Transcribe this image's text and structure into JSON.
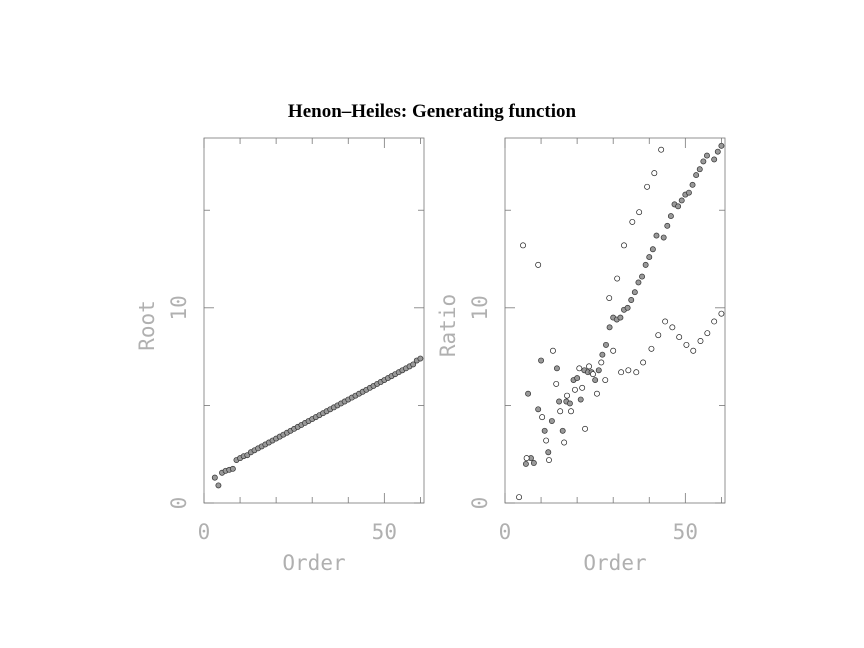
{
  "title": "Henon–Heiles: Generating function",
  "chart_data": [
    {
      "type": "scatter",
      "xlabel": "Order",
      "ylabel": "Root",
      "xlim": [
        0,
        61
      ],
      "ylim": [
        0,
        18.7
      ],
      "xticks": [
        0,
        50
      ],
      "yticks": [
        0,
        10
      ],
      "x_minor_ticks": [
        10,
        20,
        30,
        40,
        60
      ],
      "y_minor_ticks": [
        5,
        15
      ],
      "series": [
        {
          "color": "#999999",
          "filled": true,
          "x": [
            3,
            4,
            5,
            6,
            7,
            8,
            9,
            10,
            11,
            12,
            13,
            14,
            15,
            16,
            17,
            18,
            19,
            20,
            21,
            22,
            23,
            24,
            25,
            26,
            27,
            28,
            29,
            30,
            31,
            32,
            33,
            34,
            35,
            36,
            37,
            38,
            39,
            40,
            41,
            42,
            43,
            44,
            45,
            46,
            47,
            48,
            49,
            50,
            51,
            52,
            53,
            54,
            55,
            56,
            57,
            58,
            59,
            60
          ],
          "values": [
            1.3,
            0.9,
            1.55,
            1.65,
            1.7,
            1.75,
            2.2,
            2.3,
            2.4,
            2.45,
            2.6,
            2.7,
            2.8,
            2.9,
            3.0,
            3.1,
            3.2,
            3.3,
            3.4,
            3.5,
            3.6,
            3.7,
            3.8,
            3.9,
            4.0,
            4.1,
            4.2,
            4.3,
            4.4,
            4.5,
            4.6,
            4.7,
            4.8,
            4.9,
            5.0,
            5.1,
            5.2,
            5.3,
            5.4,
            5.5,
            5.6,
            5.7,
            5.8,
            5.9,
            6.0,
            6.1,
            6.2,
            6.3,
            6.4,
            6.5,
            6.6,
            6.7,
            6.8,
            6.9,
            7.0,
            7.1,
            7.3,
            7.4
          ]
        }
      ]
    },
    {
      "type": "scatter",
      "xlabel": "Order",
      "ylabel": "Ratio",
      "xlim": [
        0,
        61
      ],
      "ylim": [
        0,
        18.7
      ],
      "xticks": [
        0,
        50
      ],
      "yticks": [
        0,
        10
      ],
      "x_minor_ticks": [
        10,
        20,
        30,
        40,
        60
      ],
      "y_minor_ticks": [
        5,
        15
      ],
      "series": [
        {
          "color": "#999999",
          "filled": true,
          "x": [
            5.8,
            6.4,
            7.2,
            8,
            9.2,
            10,
            11,
            12,
            13,
            14.4,
            15,
            16,
            17,
            18,
            19,
            20,
            21,
            22,
            23,
            24,
            25,
            26,
            27,
            28,
            29,
            30,
            31,
            32,
            33,
            34,
            35,
            36,
            37,
            38,
            39,
            40,
            41,
            42,
            44,
            45,
            46,
            47,
            48,
            49,
            50,
            51,
            52,
            53,
            54,
            55,
            56,
            58,
            59,
            60
          ],
          "values": [
            2.0,
            5.6,
            2.3,
            2.05,
            4.8,
            7.3,
            3.7,
            2.6,
            4.2,
            6.9,
            5.2,
            3.7,
            5.2,
            5.1,
            6.3,
            6.4,
            5.3,
            6.8,
            6.7,
            6.7,
            6.3,
            6.8,
            7.6,
            8.1,
            9.0,
            9.5,
            9.4,
            9.5,
            9.9,
            10.0,
            10.4,
            10.8,
            11.3,
            11.6,
            12.2,
            12.6,
            13.0,
            13.7,
            13.6,
            14.2,
            14.7,
            15.3,
            15.2,
            15.5,
            15.8,
            15.9,
            16.3,
            16.8,
            17.1,
            17.5,
            17.8,
            17.6,
            18.0,
            18.3
          ]
        },
        {
          "color": "#ffffff",
          "filled": false,
          "x": [
            3.9,
            5,
            9.2,
            6,
            10.3,
            11.4,
            12.2,
            13.3,
            14.2,
            15.3,
            16.4,
            17.2,
            18.3,
            19.4,
            20.6,
            21.4,
            22.2,
            23.3,
            24.4,
            25.5,
            26.7,
            27.8,
            28.9,
            30,
            31.1,
            32.2,
            33,
            34.2,
            35.3,
            36.4,
            37.2,
            38.3,
            39.4,
            40.6,
            41.4,
            42.5,
            43.3,
            44.4,
            46.4,
            48.3,
            50.3,
            52.2,
            54.2,
            56.1,
            58,
            60
          ],
          "values": [
            0.3,
            13.2,
            12.2,
            2.3,
            4.4,
            3.2,
            2.2,
            7.8,
            6.1,
            4.7,
            3.1,
            5.5,
            4.7,
            5.8,
            6.9,
            5.9,
            3.8,
            7.0,
            6.6,
            5.6,
            7.2,
            6.3,
            10.5,
            7.8,
            11.5,
            6.7,
            13.2,
            6.8,
            14.4,
            6.7,
            14.9,
            7.2,
            16.2,
            7.9,
            16.9,
            8.6,
            18.1,
            9.3,
            9.0,
            8.5,
            8.1,
            7.8,
            8.3,
            8.7,
            9.3,
            9.7
          ]
        }
      ]
    }
  ]
}
